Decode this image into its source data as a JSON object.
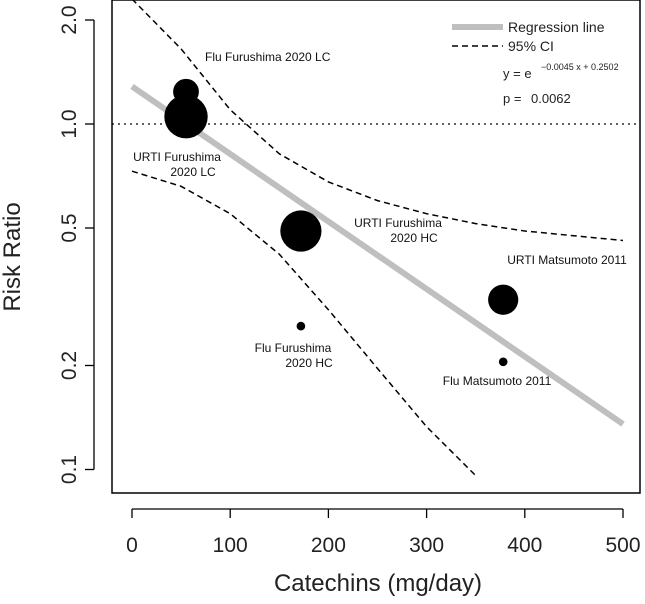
{
  "chart_data": {
    "type": "scatter",
    "x_scale": "linear",
    "y_scale": "log",
    "xlabel": "Catechins (mg/day)",
    "ylabel": "Risk Ratio",
    "xlim": [
      0,
      500
    ],
    "ylim": [
      0.09,
      2.2
    ],
    "x_ticks": [
      0,
      100,
      200,
      300,
      400,
      500
    ],
    "x_tick_labels": [
      "0",
      "100",
      "200",
      "300",
      "400",
      "500"
    ],
    "y_ticks": [
      0.1,
      0.2,
      0.5,
      1.0,
      2.0
    ],
    "y_tick_labels": [
      "0.1",
      "0.2",
      "0.5",
      "1.0",
      "2.0"
    ],
    "reference_line": 1.0,
    "points": [
      {
        "x": 55,
        "y": 1.24,
        "weight": 0.45
      },
      {
        "x": 55,
        "y": 1.05,
        "weight": 0.85
      },
      {
        "x": 172,
        "y": 0.26,
        "weight": 0.06
      },
      {
        "x": 172,
        "y": 0.49,
        "weight": 0.8
      },
      {
        "x": 378,
        "y": 0.205,
        "weight": 0.06
      },
      {
        "x": 378,
        "y": 0.31,
        "weight": 0.55
      }
    ],
    "annotations": [
      {
        "lines": [
          "Flu Furushima 2020 LC"
        ],
        "x": 55,
        "y": 1.24
      },
      {
        "lines": [
          "URTI Furushima",
          "2020 LC"
        ],
        "x": 55,
        "y": 1.05
      },
      {
        "lines": [
          "URTI Furushima",
          "2020 HC"
        ],
        "x": 172,
        "y": 0.49
      },
      {
        "lines": [
          "Flu Furushima",
          "2020 HC"
        ],
        "x": 172,
        "y": 0.26
      },
      {
        "lines": [
          "URTI Matsumoto 2011"
        ],
        "x": 378,
        "y": 0.31
      },
      {
        "lines": [
          "Flu Matsumoto 2011"
        ],
        "x": 378,
        "y": 0.205
      }
    ],
    "regression": {
      "slope": -0.0045,
      "intercept": 0.2502,
      "x_range": [
        0,
        500
      ]
    },
    "ci_lower": [
      {
        "x": 0,
        "y": 0.73
      },
      {
        "x": 50,
        "y": 0.66
      },
      {
        "x": 100,
        "y": 0.55
      },
      {
        "x": 150,
        "y": 0.42
      },
      {
        "x": 200,
        "y": 0.29
      },
      {
        "x": 250,
        "y": 0.196
      },
      {
        "x": 300,
        "y": 0.133
      },
      {
        "x": 350,
        "y": 0.096
      }
    ],
    "ci_upper": [
      {
        "x": 0,
        "y": 2.3
      },
      {
        "x": 50,
        "y": 1.65
      },
      {
        "x": 100,
        "y": 1.1
      },
      {
        "x": 150,
        "y": 0.82
      },
      {
        "x": 200,
        "y": 0.68
      },
      {
        "x": 250,
        "y": 0.6
      },
      {
        "x": 300,
        "y": 0.55
      },
      {
        "x": 350,
        "y": 0.515
      },
      {
        "x": 400,
        "y": 0.49
      },
      {
        "x": 500,
        "y": 0.46
      }
    ],
    "legend": {
      "position": "top-right",
      "regression_label": "Regression line",
      "ci_label": "95% CI"
    },
    "equation": {
      "base": "y = e",
      "exponent": "−0.0045 x + 0.2502"
    },
    "p_value": {
      "label": "p = ",
      "value": "0.0062"
    },
    "colors": {
      "regression": "#bfbfbf",
      "points": "#000000",
      "ci": "#000000"
    }
  }
}
